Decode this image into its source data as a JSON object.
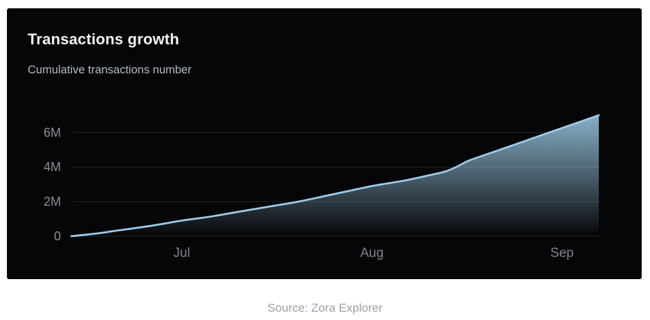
{
  "page": {
    "background_color": "#ffffff",
    "source_caption": "Source: Zora Explorer"
  },
  "card": {
    "background_color": "#050608",
    "title": "Transactions growth",
    "subtitle": "Cumulative transactions number"
  },
  "chart_data": {
    "type": "area",
    "title": "Transactions growth",
    "subtitle": "Cumulative transactions number",
    "legend": false,
    "grid": "horizontal",
    "x_axis": {
      "tick_labels": [
        "Jul",
        "Aug",
        "Sep"
      ],
      "tick_days": [
        18,
        49,
        80
      ],
      "range_days": [
        0,
        86
      ],
      "start_date": "Jun 13",
      "end_date": "Sep 7"
    },
    "y_axis": {
      "tick_labels": [
        "0",
        "2M",
        "4M",
        "6M"
      ],
      "tick_values": [
        0,
        2000000,
        4000000,
        6000000
      ],
      "range": [
        0,
        7000000
      ]
    },
    "colors": {
      "line": "#9fcbe9",
      "fill_top": "#8fb8d2",
      "grid": "#222529",
      "y_tick_label": "#8b9096",
      "x_tick_label": "#7f848b"
    },
    "series": [
      {
        "name": "Cumulative transactions",
        "points": [
          {
            "date": "Jun 13",
            "day": 0,
            "value": 0
          },
          {
            "date": "Jun 17",
            "day": 4,
            "value": 150000
          },
          {
            "date": "Jun 20",
            "day": 7,
            "value": 300000
          },
          {
            "date": "Jun 26",
            "day": 13,
            "value": 600000
          },
          {
            "date": "Jul 1",
            "day": 18,
            "value": 900000
          },
          {
            "date": "Jul 6",
            "day": 23,
            "value": 1150000
          },
          {
            "date": "Jul 10",
            "day": 27,
            "value": 1400000
          },
          {
            "date": "Jul 15",
            "day": 32,
            "value": 1700000
          },
          {
            "date": "Jul 20",
            "day": 37,
            "value": 2000000
          },
          {
            "date": "Jul 26",
            "day": 43,
            "value": 2450000
          },
          {
            "date": "Aug 1",
            "day": 49,
            "value": 2900000
          },
          {
            "date": "Aug 6",
            "day": 54,
            "value": 3200000
          },
          {
            "date": "Aug 10",
            "day": 58,
            "value": 3500000
          },
          {
            "date": "Aug 13",
            "day": 61,
            "value": 3750000
          },
          {
            "date": "Aug 15",
            "day": 63,
            "value": 4050000
          },
          {
            "date": "Aug 17",
            "day": 65,
            "value": 4400000
          },
          {
            "date": "Aug 22",
            "day": 70,
            "value": 5020000
          },
          {
            "date": "Aug 27",
            "day": 75,
            "value": 5640000
          },
          {
            "date": "Sep 1",
            "day": 80,
            "value": 6260000
          },
          {
            "date": "Sep 7",
            "day": 86,
            "value": 7000000
          }
        ]
      }
    ]
  }
}
